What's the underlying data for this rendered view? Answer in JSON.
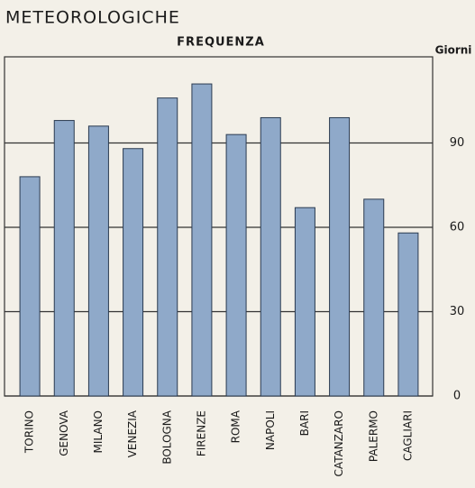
{
  "chart_data": {
    "type": "bar",
    "title": "METEOROLOGICHE",
    "subtitle": "FREQUENZA",
    "y_axis_label": "Giorni",
    "categories": [
      "TORINO",
      "GENOVA",
      "MILANO",
      "VENEZIA",
      "BOLOGNA",
      "FIRENZE",
      "ROMA",
      "NAPOLI",
      "BARI",
      "CATANZARO",
      "PALERMO",
      "CAGLIARI"
    ],
    "values": [
      78,
      98,
      96,
      88,
      106,
      111,
      93,
      99,
      67,
      99,
      70,
      58
    ],
    "color": "#8fa9c9",
    "ylim": [
      0,
      120
    ],
    "yticks": [
      0,
      30,
      60,
      90
    ],
    "grid": true
  }
}
